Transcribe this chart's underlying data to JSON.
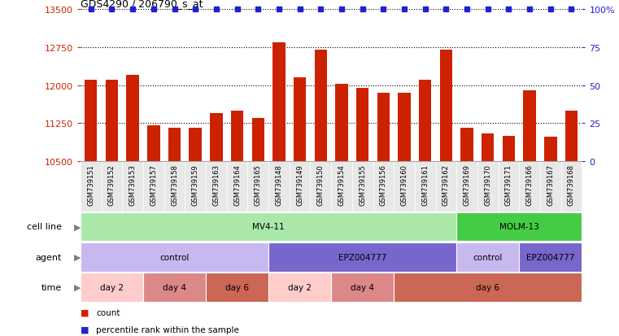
{
  "title": "GDS4290 / 206790_s_at",
  "samples": [
    "GSM739151",
    "GSM739152",
    "GSM739153",
    "GSM739157",
    "GSM739158",
    "GSM739159",
    "GSM739163",
    "GSM739164",
    "GSM739165",
    "GSM739148",
    "GSM739149",
    "GSM739150",
    "GSM739154",
    "GSM739155",
    "GSM739156",
    "GSM739160",
    "GSM739161",
    "GSM739162",
    "GSM739169",
    "GSM739170",
    "GSM739171",
    "GSM739166",
    "GSM739167",
    "GSM739168"
  ],
  "counts": [
    12100,
    12100,
    12200,
    11200,
    11150,
    11150,
    11450,
    11500,
    11350,
    12850,
    12150,
    12700,
    12020,
    11950,
    11850,
    11850,
    12100,
    12700,
    11150,
    11050,
    11000,
    11900,
    10980,
    11500
  ],
  "percentile_ranks": [
    100,
    100,
    100,
    100,
    100,
    100,
    100,
    100,
    100,
    100,
    100,
    100,
    100,
    100,
    100,
    100,
    100,
    100,
    100,
    100,
    100,
    100,
    100,
    100
  ],
  "bar_color": "#cc2200",
  "dot_color": "#2222cc",
  "ylim_left": [
    10500,
    13500
  ],
  "yticks_left": [
    10500,
    11250,
    12000,
    12750,
    13500
  ],
  "yticks_right": [
    0,
    25,
    50,
    75,
    100
  ],
  "ylabel_right_color": "#2222cc",
  "ylabel_left_color": "#cc2200",
  "plot_bg_color": "#ffffff",
  "xticklabel_bg": "#e8e8e8",
  "cell_line_row": {
    "label": "cell line",
    "segments": [
      {
        "text": "MV4-11",
        "start": 0,
        "end": 18,
        "color": "#aae8aa"
      },
      {
        "text": "MOLM-13",
        "start": 18,
        "end": 24,
        "color": "#44cc44"
      }
    ]
  },
  "agent_row": {
    "label": "agent",
    "segments": [
      {
        "text": "control",
        "start": 0,
        "end": 9,
        "color": "#c8b8f0"
      },
      {
        "text": "EPZ004777",
        "start": 9,
        "end": 18,
        "color": "#7766cc"
      },
      {
        "text": "control",
        "start": 18,
        "end": 21,
        "color": "#c8b8f0"
      },
      {
        "text": "EPZ004777",
        "start": 21,
        "end": 24,
        "color": "#7766cc"
      }
    ]
  },
  "time_row": {
    "label": "time",
    "segments": [
      {
        "text": "day 2",
        "start": 0,
        "end": 3,
        "color": "#ffcccc"
      },
      {
        "text": "day 4",
        "start": 3,
        "end": 6,
        "color": "#dd8888"
      },
      {
        "text": "day 6",
        "start": 6,
        "end": 9,
        "color": "#cc6655"
      },
      {
        "text": "day 2",
        "start": 9,
        "end": 12,
        "color": "#ffcccc"
      },
      {
        "text": "day 4",
        "start": 12,
        "end": 15,
        "color": "#dd8888"
      },
      {
        "text": "day 6",
        "start": 15,
        "end": 24,
        "color": "#cc6655"
      }
    ]
  },
  "legend": [
    {
      "label": "count",
      "color": "#cc2200"
    },
    {
      "label": "percentile rank within the sample",
      "color": "#2222cc"
    }
  ]
}
